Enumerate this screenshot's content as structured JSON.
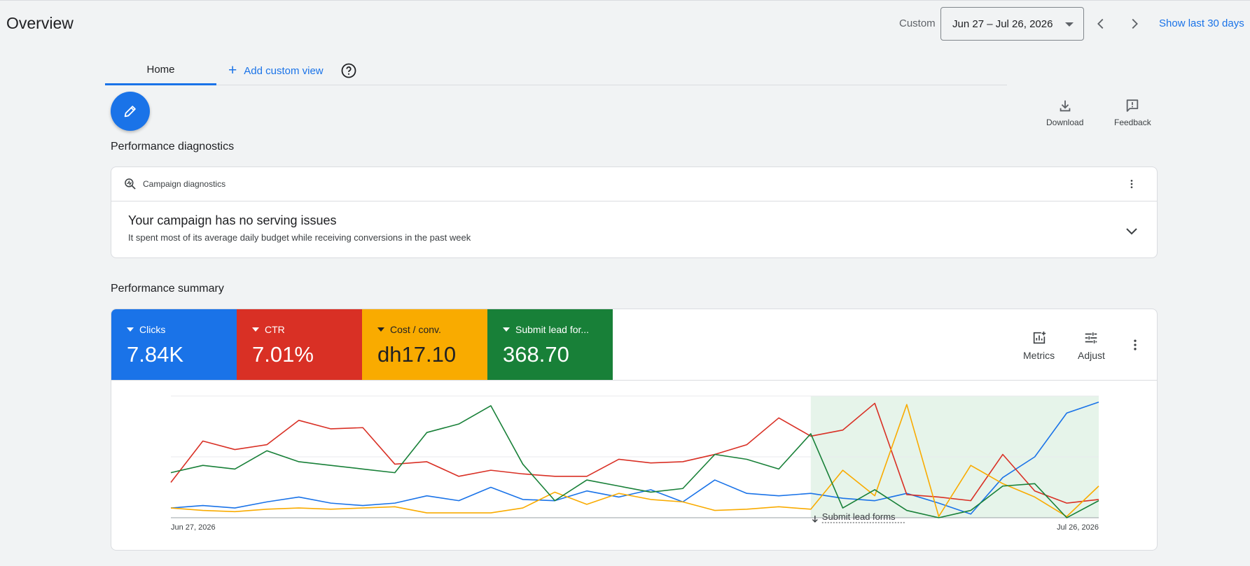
{
  "header": {
    "title": "Overview",
    "custom_label": "Custom",
    "date_range": "Jun 27 – Jul 26, 2026",
    "show_last": "Show last 30 days"
  },
  "tabs": {
    "home": "Home",
    "add_custom_view": "Add custom view"
  },
  "toolbar": {
    "download": "Download",
    "feedback": "Feedback"
  },
  "diagnostics": {
    "section_title": "Performance diagnostics",
    "card_label": "Campaign diagnostics",
    "title": "Your campaign has no serving issues",
    "subtitle": "It spent most of its average daily budget while receiving conversions in the past week"
  },
  "summary": {
    "section_title": "Performance summary",
    "metrics": [
      {
        "label": "Clicks",
        "value": "7.84K",
        "color": "#1a73e8"
      },
      {
        "label": "CTR",
        "value": "7.01%",
        "color": "#d93025"
      },
      {
        "label": "Cost / conv.",
        "value": "dh17.10",
        "color": "#f9ab00"
      },
      {
        "label": "Submit lead for...",
        "value": "368.70",
        "color": "#188038"
      }
    ],
    "metrics_button": "Metrics",
    "adjust_button": "Adjust"
  },
  "chart_data": {
    "type": "line",
    "x_start_label": "Jun 27, 2026",
    "x_end_label": "Jul 26, 2026",
    "annotation": "Submit lead forms",
    "highlight_range": [
      20,
      29
    ],
    "highlight_color": "#e6f4ea",
    "grid": true,
    "series": [
      {
        "color": "#1a73e8",
        "values": [
          8,
          10,
          8,
          13,
          17,
          12,
          10,
          12,
          18,
          14,
          25,
          15,
          14,
          22,
          17,
          23,
          13,
          31,
          20,
          18,
          20,
          16,
          14,
          20,
          12,
          3,
          33,
          50,
          86,
          95
        ]
      },
      {
        "color": "#d93025",
        "values": [
          29,
          63,
          56,
          60,
          80,
          73,
          74,
          44,
          46,
          34,
          39,
          36,
          34,
          34,
          48,
          45,
          46,
          52,
          60,
          82,
          67,
          72,
          94,
          19,
          17,
          14,
          52,
          22,
          12,
          15
        ]
      },
      {
        "color": "#f9ab00",
        "values": [
          8,
          6,
          5,
          7,
          8,
          7,
          8,
          9,
          4,
          4,
          4,
          8,
          21,
          11,
          20,
          15,
          13,
          6,
          7,
          9,
          7,
          39,
          18,
          93,
          1,
          43,
          28,
          17,
          1,
          26
        ]
      },
      {
        "color": "#188038",
        "values": [
          37,
          43,
          40,
          55,
          46,
          43,
          40,
          37,
          70,
          77,
          92,
          44,
          14,
          31,
          26,
          21,
          24,
          52,
          48,
          40,
          69,
          8,
          23,
          6,
          0,
          6,
          26,
          28,
          0,
          14
        ]
      }
    ]
  }
}
